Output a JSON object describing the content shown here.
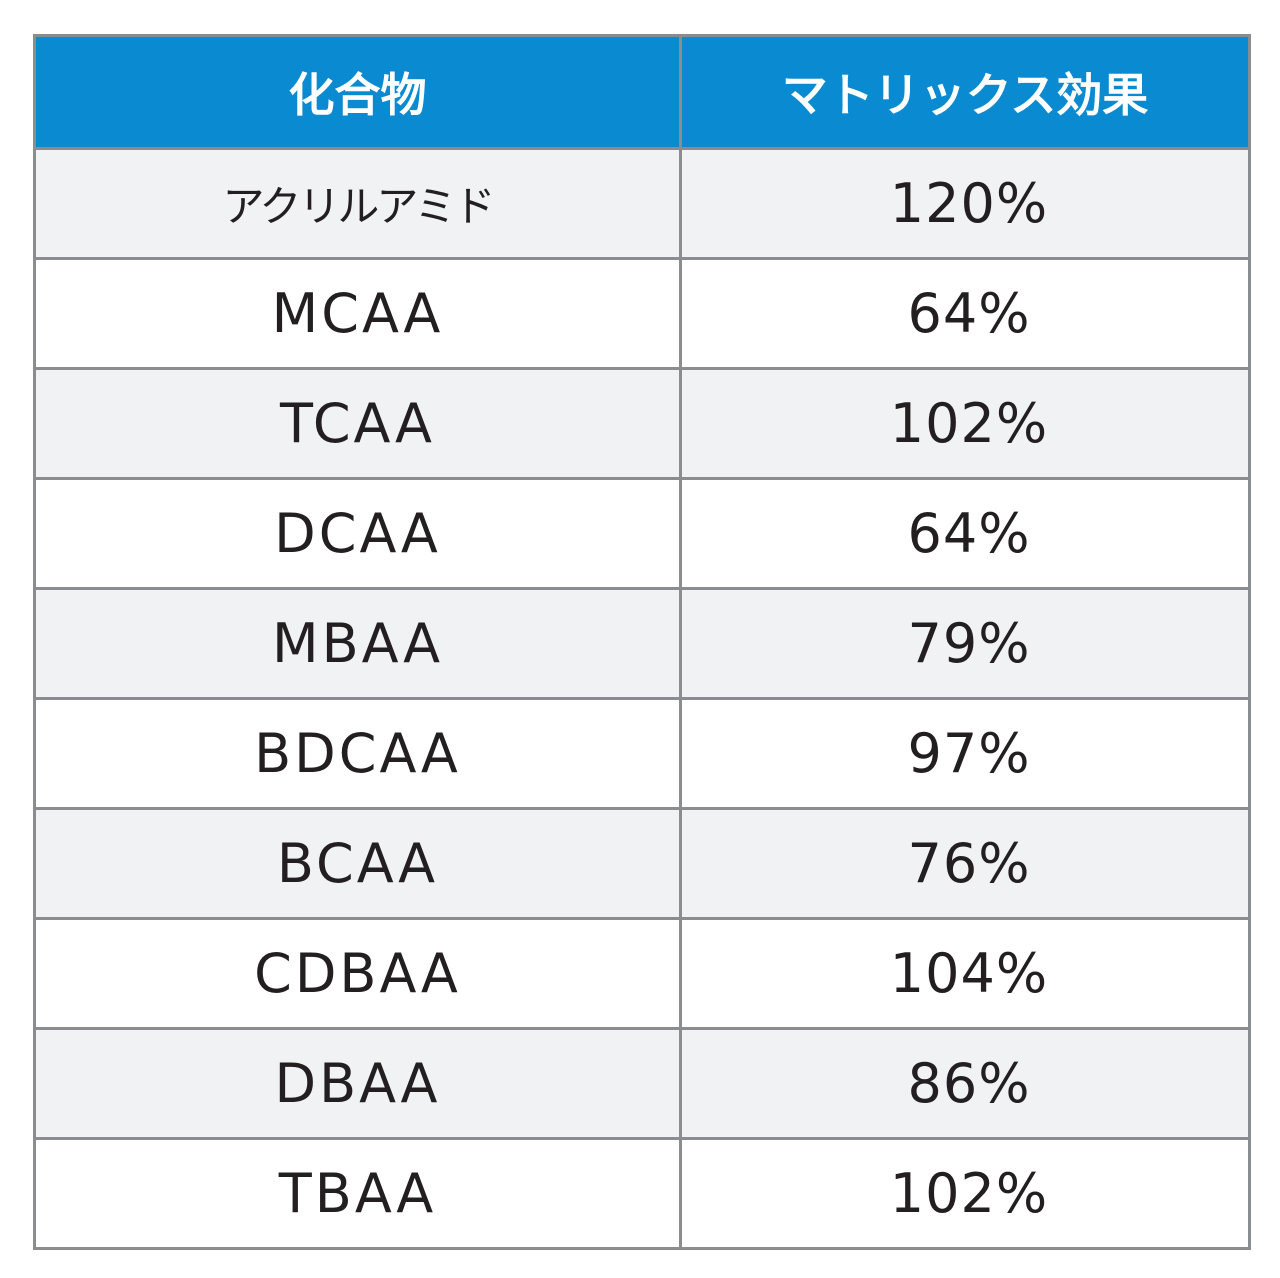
{
  "table": {
    "headers": [
      "化合物",
      "マトリックス効果"
    ],
    "rows": [
      [
        "アクリルアミド",
        "120%"
      ],
      [
        "MCAA",
        "64%"
      ],
      [
        "TCAA",
        "102%"
      ],
      [
        "DCAA",
        "64%"
      ],
      [
        "MBAA",
        "79%"
      ],
      [
        "BDCAA",
        "97%"
      ],
      [
        "BCAA",
        "76%"
      ],
      [
        "CDBAA",
        "104%"
      ],
      [
        "DBAA",
        "86%"
      ],
      [
        "TBAA",
        "102%"
      ]
    ]
  },
  "colors": {
    "header_bg": "#0a8ad0",
    "header_text": "#ffffff",
    "row_alt_bg": "#f1f2f4",
    "border": "#8a8c90"
  }
}
